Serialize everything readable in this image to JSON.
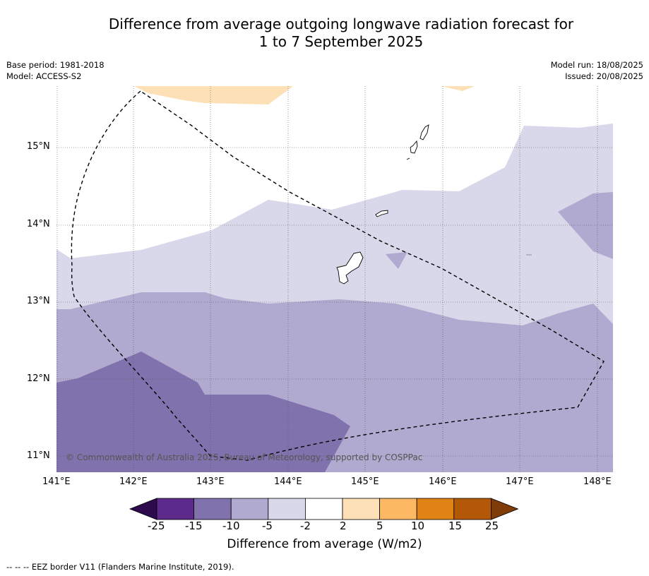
{
  "title": {
    "line1": "Difference from average outgoing longwave radiation forecast for",
    "line2": "1 to 7 September 2025"
  },
  "meta": {
    "base_period": "Base period: 1981-2018",
    "model": "Model: ACCESS-S2",
    "model_run": "Model run: 18/08/2025",
    "issued": "Issued: 20/08/2025"
  },
  "map": {
    "lon_range": [
      141.0,
      148.2
    ],
    "lat_range": [
      10.8,
      15.8
    ],
    "lat_labels": [
      "15°N",
      "14°N",
      "13°N",
      "12°N",
      "11°N"
    ],
    "lon_labels": [
      "141°E",
      "142°E",
      "143°E",
      "144°E",
      "145°E",
      "146°E",
      "147°E",
      "148°E"
    ],
    "copyright": "© Commonwealth of Australia 2025, Bureau of Meteorology, supported by COSPPac"
  },
  "colorbar": {
    "title": "Difference from average (W/m2)",
    "labels": [
      "-25",
      "-15",
      "-10",
      "-5",
      "-2",
      "2",
      "5",
      "10",
      "15",
      "25"
    ],
    "colors": [
      "#2d0a4e",
      "#5c2a8a",
      "#8072ad",
      "#b1aad0",
      "#d8d8ea",
      "#ffffff",
      "#fde0b5",
      "#fdb863",
      "#e08214",
      "#b35806",
      "#7f3b08"
    ]
  },
  "footer": "--  --  -- EEZ border V11 (Flanders Marine Institute, 2019)."
}
